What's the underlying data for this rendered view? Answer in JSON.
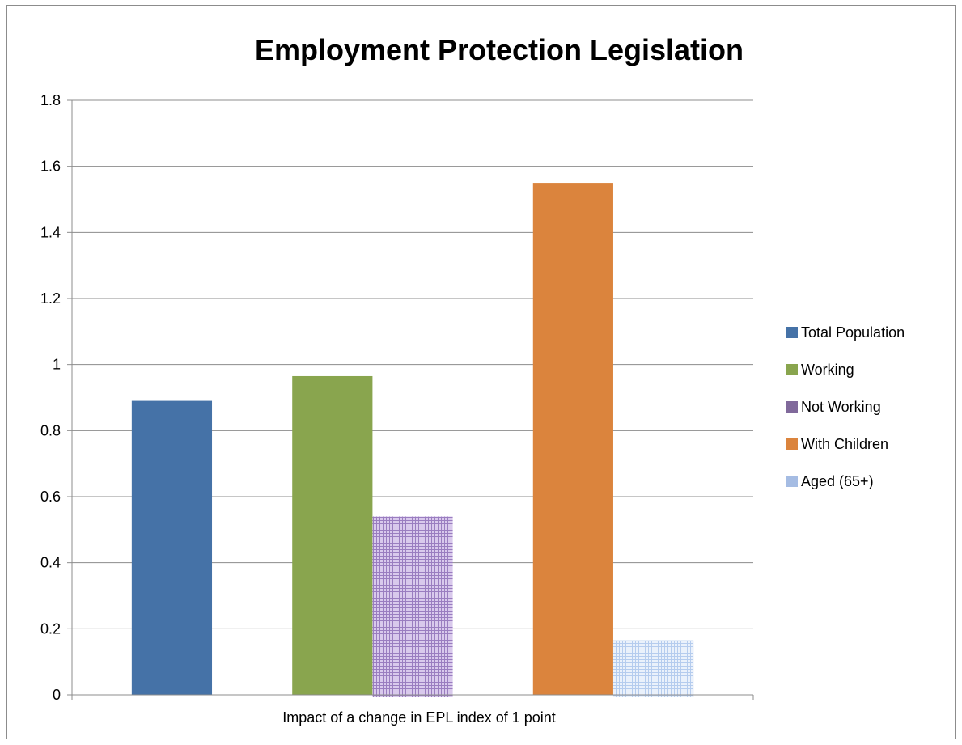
{
  "chart_data": {
    "type": "bar",
    "title": "Employment Protection Legislation",
    "xlabel": "Impact of a change in EPL index of 1 point",
    "ylabel": "",
    "ylim": [
      0,
      1.8
    ],
    "yticks": [
      "0",
      "0.2",
      "0.4",
      "0.6",
      "0.8",
      "1",
      "1.2",
      "1.4",
      "1.6",
      "1.8"
    ],
    "grid": true,
    "legend_position": "right",
    "categories": [
      "Impact of a change in EPL index of 1 point"
    ],
    "series": [
      {
        "name": "Total Population",
        "values": [
          0.89
        ],
        "color": "#4572A7",
        "pattern": "solid"
      },
      {
        "name": "Working",
        "values": [
          0.965
        ],
        "color": "#89A54E",
        "pattern": "solid"
      },
      {
        "name": "Not Working",
        "values": [
          0.54
        ],
        "color": "#80699B",
        "pattern": "grid"
      },
      {
        "name": "With Children",
        "values": [
          1.55
        ],
        "color": "#DB843D",
        "pattern": "solid"
      },
      {
        "name": "Aged (65+)",
        "values": [
          0.165
        ],
        "color": "#A5BCE3",
        "pattern": "grid"
      }
    ]
  }
}
